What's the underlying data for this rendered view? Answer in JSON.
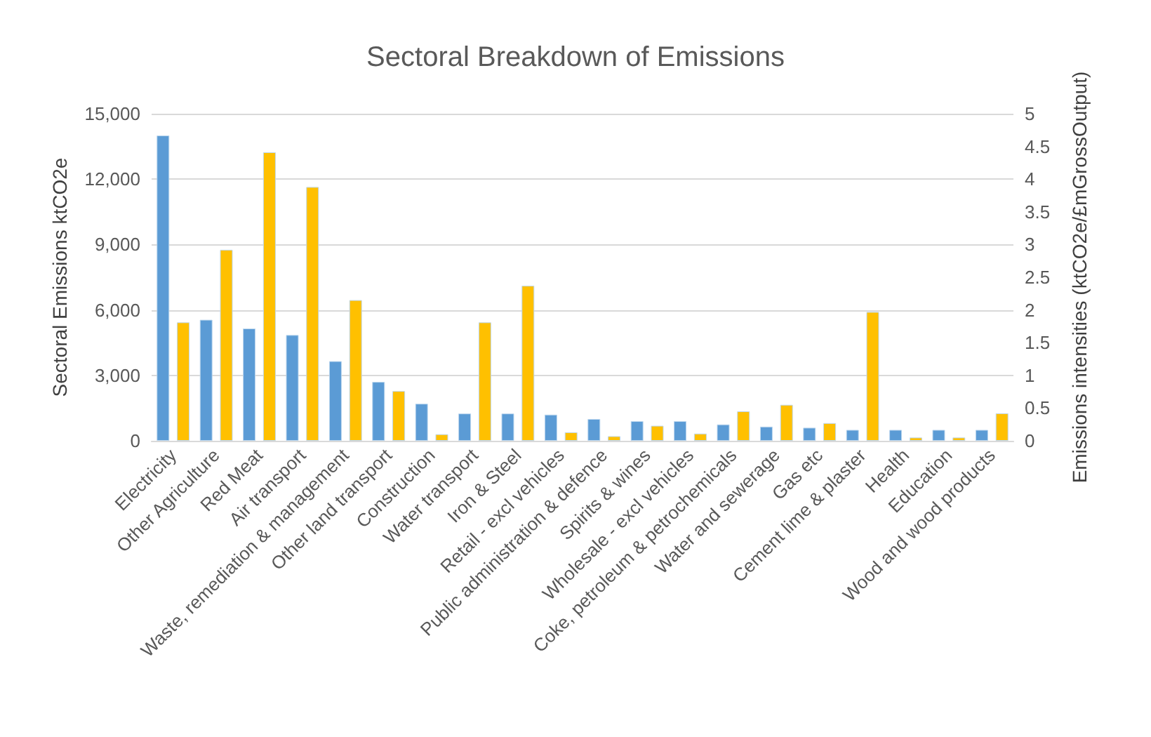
{
  "chart_data": {
    "type": "bar",
    "title": "Sectoral Breakdown of Emissions",
    "ylabel": "Sectoral Emissions ktCO2e",
    "y2label": "Emissions intensities (ktCO2e/£mGrossOutput)",
    "categories": [
      "Electricity",
      "Other Agriculture",
      "Red Meat",
      "Air transport",
      "Waste, remediation & management",
      "Other land transport",
      "Construction",
      "Water transport",
      "Iron & Steel",
      "Retail - excl vehicles",
      "Public administration & defence",
      "Spirits & wines",
      "Wholesale - excl vehicles",
      "Coke, petroleum & petrochemicals",
      "Water and sewerage",
      "Gas etc",
      "Cement lime & plaster",
      "Health",
      "Education",
      "Wood and wood products"
    ],
    "series": [
      {
        "color": "#5b9bd5",
        "values": [
          14000,
          5550,
          5150,
          4850,
          3650,
          2700,
          1700,
          1250,
          1250,
          1200,
          1000,
          900,
          900,
          750,
          650,
          600,
          500,
          500,
          500,
          500
        ]
      },
      {
        "color": "#ffc000",
        "axis": "y2",
        "values": [
          1.81,
          2.92,
          4.41,
          3.88,
          2.15,
          0.76,
          0.1,
          1.81,
          2.37,
          0.13,
          0.07,
          0.23,
          0.11,
          0.45,
          0.55,
          0.27,
          1.97,
          0.05,
          0.05,
          0.42
        ]
      }
    ],
    "ylim": [
      0,
      15000
    ],
    "yticks": [
      {
        "value": 0,
        "label": "0"
      },
      {
        "value": 3000,
        "label": "3,000"
      },
      {
        "value": 6000,
        "label": "6,000"
      },
      {
        "value": 9000,
        "label": "9,000"
      },
      {
        "value": 12000,
        "label": "12,000"
      },
      {
        "value": 15000,
        "label": "15,000"
      }
    ],
    "y2lim": [
      0,
      5
    ],
    "y2ticks": [
      0,
      0.5,
      1,
      1.5,
      2,
      2.5,
      3,
      3.5,
      4,
      4.5,
      5
    ],
    "grid": "y"
  }
}
